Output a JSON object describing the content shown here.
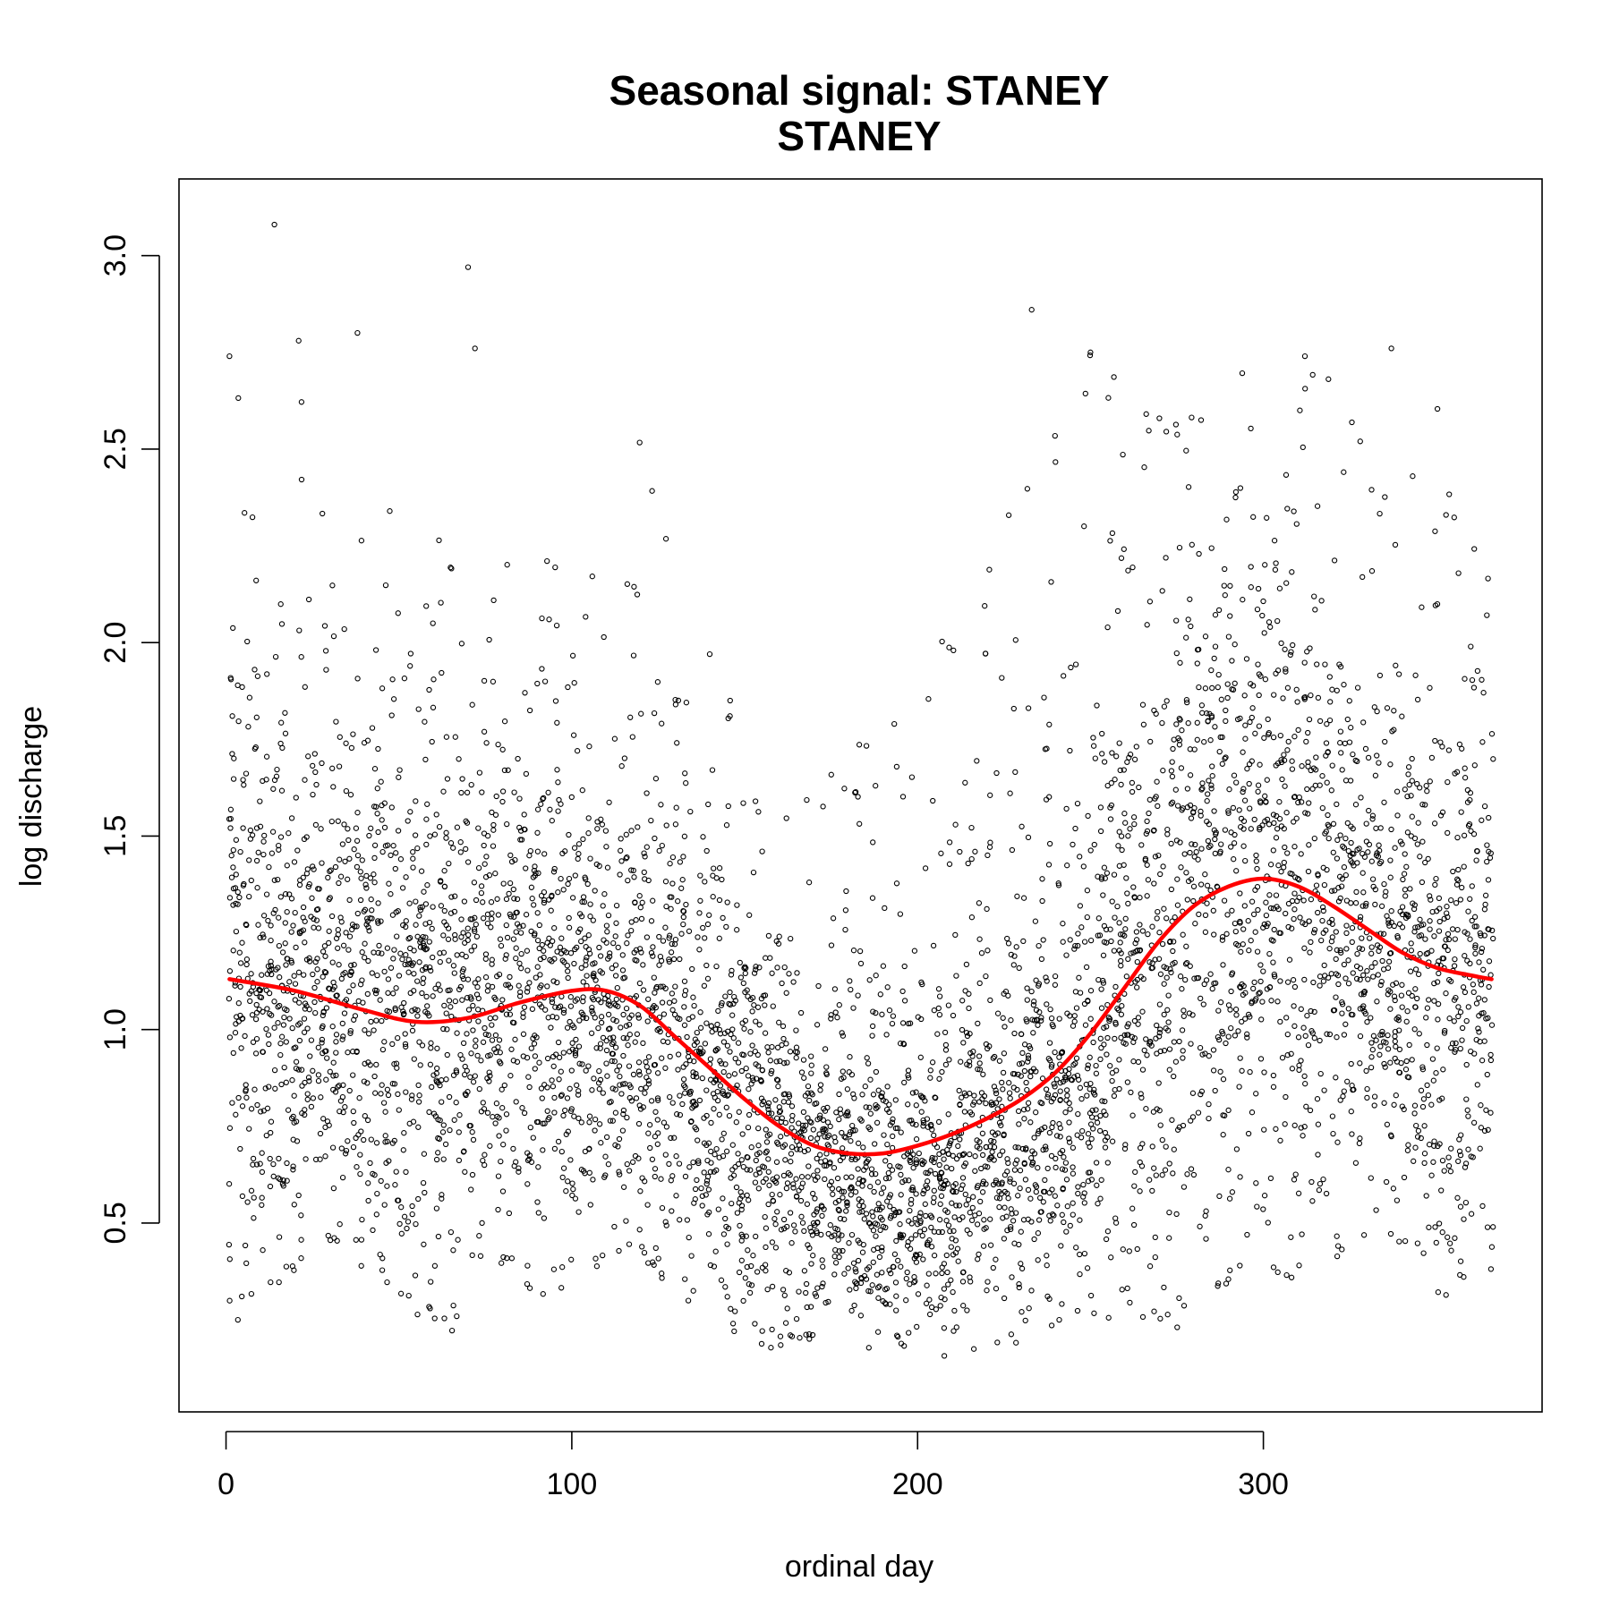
{
  "chart_data": {
    "type": "scatter",
    "title": "Seasonal signal: STANEY",
    "subtitle": "STANEY",
    "xlabel": "ordinal day",
    "ylabel": "log discharge",
    "xlim": [
      1,
      366
    ],
    "ylim": [
      0.13,
      3.08
    ],
    "xticks": [
      0,
      100,
      200,
      300
    ],
    "yticks": [
      0.5,
      1.0,
      1.5,
      2.0,
      2.5,
      3.0
    ],
    "xtick_labels": [
      "0",
      "100",
      "200",
      "300"
    ],
    "ytick_labels": [
      "0.5",
      "1.0",
      "1.5",
      "2.0",
      "2.5",
      "3.0"
    ],
    "grid": false,
    "point_style": "open-circle",
    "point_color": "#000000",
    "scatter_envelope": {
      "day": [
        1,
        30,
        60,
        90,
        120,
        150,
        170,
        190,
        210,
        230,
        250,
        270,
        290,
        310,
        330,
        350,
        366
      ],
      "center": [
        1.12,
        1.06,
        1.0,
        1.02,
        1.0,
        0.78,
        0.62,
        0.55,
        0.6,
        0.72,
        0.9,
        1.15,
        1.35,
        1.3,
        1.15,
        1.05,
        1.1
      ],
      "low": [
        0.22,
        0.45,
        0.2,
        0.3,
        0.4,
        0.14,
        0.2,
        0.17,
        0.15,
        0.18,
        0.25,
        0.2,
        0.32,
        0.35,
        0.45,
        0.3,
        0.3
      ],
      "high": [
        2.74,
        2.6,
        2.28,
        2.18,
        2.55,
        1.77,
        1.62,
        1.85,
        2.1,
        2.4,
        2.75,
        2.6,
        2.7,
        2.72,
        2.65,
        2.7,
        2.25
      ]
    },
    "scatter_outliers": [
      {
        "x": 14,
        "y": 3.08
      },
      {
        "x": 70,
        "y": 2.97
      },
      {
        "x": 233,
        "y": 2.86
      },
      {
        "x": 21,
        "y": 2.78
      },
      {
        "x": 38,
        "y": 2.8
      },
      {
        "x": 72,
        "y": 2.76
      },
      {
        "x": 337,
        "y": 2.76
      },
      {
        "x": 312,
        "y": 2.74
      },
      {
        "x": 1,
        "y": 2.74
      },
      {
        "x": 250,
        "y": 2.75
      }
    ],
    "series": [
      {
        "type": "line",
        "color": "#ff0000",
        "x": [
          1,
          20,
          40,
          55,
          70,
          85,
          100,
          110,
          120,
          130,
          140,
          150,
          160,
          170,
          180,
          190,
          200,
          210,
          220,
          230,
          240,
          250,
          260,
          270,
          280,
          290,
          300,
          310,
          320,
          330,
          340,
          350,
          360,
          366
        ],
        "y": [
          1.13,
          1.1,
          1.05,
          1.02,
          1.03,
          1.07,
          1.1,
          1.1,
          1.06,
          0.98,
          0.9,
          0.82,
          0.75,
          0.7,
          0.68,
          0.68,
          0.7,
          0.73,
          0.77,
          0.82,
          0.89,
          0.99,
          1.11,
          1.23,
          1.32,
          1.37,
          1.39,
          1.37,
          1.32,
          1.26,
          1.2,
          1.16,
          1.14,
          1.13
        ]
      }
    ]
  }
}
